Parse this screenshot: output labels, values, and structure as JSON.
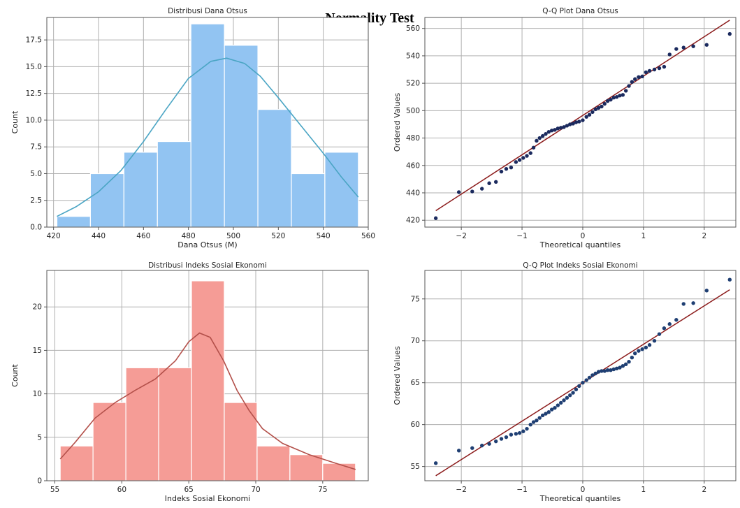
{
  "figure_title": "Normality Test",
  "chart_data": [
    {
      "type": "bar",
      "title": "Distribusi Dana Otsus",
      "xlabel": "Dana Otsus (M)",
      "ylabel": "Count",
      "xlim": [
        417,
        560
      ],
      "ylim": [
        0,
        19.6
      ],
      "xticks": [
        420,
        440,
        460,
        480,
        500,
        520,
        540,
        560
      ],
      "yticks": [
        0.0,
        2.5,
        5.0,
        7.5,
        10.0,
        12.5,
        15.0,
        17.5
      ],
      "ytick_labels": [
        "0.0",
        "2.5",
        "5.0",
        "7.5",
        "10.0",
        "12.5",
        "15.0",
        "17.5"
      ],
      "bin_edges": [
        421.5,
        436.4,
        451.3,
        466.2,
        481.1,
        496.0,
        510.9,
        525.8,
        540.7,
        555.6
      ],
      "values": [
        1,
        5,
        7,
        8,
        19,
        17,
        11,
        5,
        7
      ],
      "kde": [
        [
          421.5,
          1.0
        ],
        [
          430,
          1.9
        ],
        [
          440,
          3.3
        ],
        [
          450,
          5.3
        ],
        [
          460,
          8.0
        ],
        [
          470,
          11.0
        ],
        [
          480,
          13.9
        ],
        [
          490,
          15.5
        ],
        [
          497,
          15.8
        ],
        [
          505,
          15.3
        ],
        [
          512,
          14.1
        ],
        [
          520,
          12.1
        ],
        [
          530,
          9.5
        ],
        [
          540,
          6.9
        ],
        [
          548,
          4.7
        ],
        [
          555.6,
          2.8
        ]
      ],
      "grid": true,
      "bar_color": "#92c4f2",
      "kde_color": "#4aa5c4"
    },
    {
      "type": "scatter",
      "title": "Q-Q Plot Dana Otsus",
      "xlabel": "Theoretical quantiles",
      "ylabel": "Ordered Values",
      "xlim": [
        -2.6,
        2.52
      ],
      "ylim": [
        415,
        568
      ],
      "xticks": [
        -2,
        -1,
        0,
        1,
        2
      ],
      "xtick_labels": [
        "−2",
        "−1",
        "0",
        "1",
        "2"
      ],
      "yticks": [
        420,
        440,
        460,
        480,
        500,
        520,
        540,
        560
      ],
      "ytick_labels": [
        "420",
        "440",
        "460",
        "480",
        "500",
        "520",
        "540",
        "560"
      ],
      "fit_line": [
        [
          -2.42,
          427
        ],
        [
          2.42,
          566
        ]
      ],
      "points": [
        [
          -2.42,
          421.5
        ],
        [
          -2.04,
          440.5
        ],
        [
          -1.82,
          441
        ],
        [
          -1.66,
          443
        ],
        [
          -1.54,
          447
        ],
        [
          -1.43,
          448
        ],
        [
          -1.34,
          455.5
        ],
        [
          -1.26,
          457.5
        ],
        [
          -1.18,
          458.5
        ],
        [
          -1.1,
          462.5
        ],
        [
          -1.04,
          464
        ],
        [
          -0.98,
          465.5
        ],
        [
          -0.92,
          467
        ],
        [
          -0.86,
          469
        ],
        [
          -0.81,
          473
        ],
        [
          -0.76,
          478
        ],
        [
          -0.71,
          480
        ],
        [
          -0.66,
          481.5
        ],
        [
          -0.61,
          483
        ],
        [
          -0.56,
          484.5
        ],
        [
          -0.51,
          485.5
        ],
        [
          -0.46,
          486
        ],
        [
          -0.41,
          487
        ],
        [
          -0.36,
          487.5
        ],
        [
          -0.31,
          488
        ],
        [
          -0.26,
          489
        ],
        [
          -0.21,
          490
        ],
        [
          -0.16,
          490.5
        ],
        [
          -0.11,
          491.5
        ],
        [
          -0.06,
          492
        ],
        [
          0.0,
          493
        ],
        [
          0.06,
          495.5
        ],
        [
          0.11,
          497
        ],
        [
          0.16,
          499
        ],
        [
          0.21,
          501
        ],
        [
          0.26,
          502
        ],
        [
          0.31,
          503
        ],
        [
          0.36,
          505
        ],
        [
          0.41,
          507
        ],
        [
          0.46,
          508
        ],
        [
          0.51,
          509.5
        ],
        [
          0.56,
          510
        ],
        [
          0.61,
          511
        ],
        [
          0.66,
          511.5
        ],
        [
          0.71,
          514.5
        ],
        [
          0.76,
          518
        ],
        [
          0.81,
          521
        ],
        [
          0.86,
          523
        ],
        [
          0.92,
          524.5
        ],
        [
          0.98,
          525
        ],
        [
          1.04,
          528
        ],
        [
          1.1,
          529
        ],
        [
          1.18,
          530
        ],
        [
          1.26,
          531
        ],
        [
          1.34,
          532
        ],
        [
          1.43,
          541
        ],
        [
          1.54,
          545
        ],
        [
          1.66,
          546
        ],
        [
          1.82,
          547
        ],
        [
          2.04,
          548
        ],
        [
          2.42,
          556
        ]
      ],
      "grid": true,
      "point_color": "#1b2a5e",
      "line_color": "#8b1a1a"
    },
    {
      "type": "bar",
      "title": "Distribusi Indeks Sosial Ekonomi",
      "xlabel": "Indeks Sosial Ekonomi",
      "ylabel": "Count",
      "xlim": [
        54.4,
        78.4
      ],
      "ylim": [
        0,
        24.2
      ],
      "xticks": [
        55,
        60,
        65,
        70,
        75
      ],
      "yticks": [
        0,
        5,
        10,
        15,
        20
      ],
      "bin_edges": [
        55.4,
        57.85,
        60.3,
        62.75,
        65.2,
        67.65,
        70.1,
        72.55,
        75.0,
        77.45
      ],
      "values": [
        4,
        9,
        13,
        13,
        23,
        9,
        4,
        3,
        2
      ],
      "kde": [
        [
          55.4,
          2.5
        ],
        [
          56.5,
          4.4
        ],
        [
          58,
          7.2
        ],
        [
          59.5,
          9.0
        ],
        [
          61,
          10.4
        ],
        [
          62.5,
          11.7
        ],
        [
          64,
          13.8
        ],
        [
          65,
          16.0
        ],
        [
          65.8,
          17.0
        ],
        [
          66.6,
          16.5
        ],
        [
          67.6,
          13.8
        ],
        [
          68.6,
          10.4
        ],
        [
          69.5,
          8.1
        ],
        [
          70.5,
          6.0
        ],
        [
          72,
          4.3
        ],
        [
          74,
          3.0
        ],
        [
          76,
          2.0
        ],
        [
          77.45,
          1.3
        ]
      ],
      "grid": true,
      "bar_color": "#f59c96",
      "kde_color": "#b3504a"
    },
    {
      "type": "scatter",
      "title": "Q-Q Plot Indeks Sosial Ekonomi",
      "xlabel": "Theoretical quantiles",
      "ylabel": "Ordered Values",
      "xlim": [
        -2.6,
        2.52
      ],
      "ylim": [
        53.3,
        78.4
      ],
      "xticks": [
        -2,
        -1,
        0,
        1,
        2
      ],
      "xtick_labels": [
        "−2",
        "−1",
        "0",
        "1",
        "2"
      ],
      "yticks": [
        55,
        60,
        65,
        70,
        75
      ],
      "fit_line": [
        [
          -2.42,
          53.9
        ],
        [
          2.42,
          76.1
        ]
      ],
      "points": [
        [
          -2.42,
          55.4
        ],
        [
          -2.04,
          56.9
        ],
        [
          -1.82,
          57.2
        ],
        [
          -1.66,
          57.5
        ],
        [
          -1.54,
          57.7
        ],
        [
          -1.43,
          58.0
        ],
        [
          -1.34,
          58.3
        ],
        [
          -1.26,
          58.5
        ],
        [
          -1.18,
          58.8
        ],
        [
          -1.1,
          58.9
        ],
        [
          -1.04,
          59.0
        ],
        [
          -0.98,
          59.2
        ],
        [
          -0.92,
          59.5
        ],
        [
          -0.86,
          60.0
        ],
        [
          -0.81,
          60.3
        ],
        [
          -0.76,
          60.5
        ],
        [
          -0.71,
          60.8
        ],
        [
          -0.66,
          61.1
        ],
        [
          -0.61,
          61.3
        ],
        [
          -0.56,
          61.5
        ],
        [
          -0.51,
          61.8
        ],
        [
          -0.46,
          62.0
        ],
        [
          -0.41,
          62.3
        ],
        [
          -0.36,
          62.6
        ],
        [
          -0.31,
          62.9
        ],
        [
          -0.26,
          63.2
        ],
        [
          -0.21,
          63.5
        ],
        [
          -0.16,
          63.8
        ],
        [
          -0.11,
          64.2
        ],
        [
          -0.06,
          64.6
        ],
        [
          0.0,
          65.0
        ],
        [
          0.06,
          65.3
        ],
        [
          0.11,
          65.6
        ],
        [
          0.16,
          65.9
        ],
        [
          0.21,
          66.1
        ],
        [
          0.26,
          66.3
        ],
        [
          0.31,
          66.4
        ],
        [
          0.36,
          66.4
        ],
        [
          0.41,
          66.5
        ],
        [
          0.46,
          66.5
        ],
        [
          0.51,
          66.6
        ],
        [
          0.56,
          66.7
        ],
        [
          0.61,
          66.8
        ],
        [
          0.66,
          67.0
        ],
        [
          0.71,
          67.2
        ],
        [
          0.76,
          67.5
        ],
        [
          0.81,
          68.0
        ],
        [
          0.86,
          68.5
        ],
        [
          0.92,
          68.8
        ],
        [
          0.98,
          69.0
        ],
        [
          1.04,
          69.2
        ],
        [
          1.1,
          69.5
        ],
        [
          1.18,
          70.0
        ],
        [
          1.26,
          70.8
        ],
        [
          1.34,
          71.5
        ],
        [
          1.43,
          72.0
        ],
        [
          1.54,
          72.5
        ],
        [
          1.66,
          74.4
        ],
        [
          1.82,
          74.5
        ],
        [
          2.04,
          76.0
        ],
        [
          2.42,
          77.3
        ]
      ],
      "grid": true,
      "point_color": "#1f3f73",
      "line_color": "#8b1a1a"
    }
  ]
}
